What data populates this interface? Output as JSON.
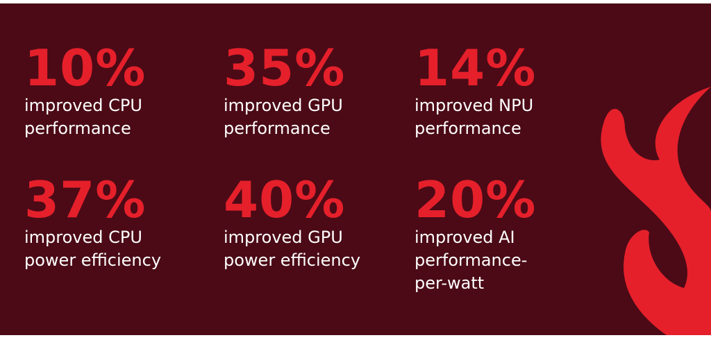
{
  "stats": [
    {
      "value": "10%",
      "lines": [
        "improved CPU",
        "performance"
      ]
    },
    {
      "value": "35%",
      "lines": [
        "improved GPU",
        "performance"
      ]
    },
    {
      "value": "14%",
      "lines": [
        "improved NPU",
        "performance"
      ]
    },
    {
      "value": "37%",
      "lines": [
        "improved CPU",
        "power efficiency"
      ]
    },
    {
      "value": "40%",
      "lines": [
        "improved GPU",
        "power efficiency"
      ]
    },
    {
      "value": "20%",
      "lines": [
        "improved AI",
        "performance-",
        "per-watt"
      ]
    }
  ]
}
